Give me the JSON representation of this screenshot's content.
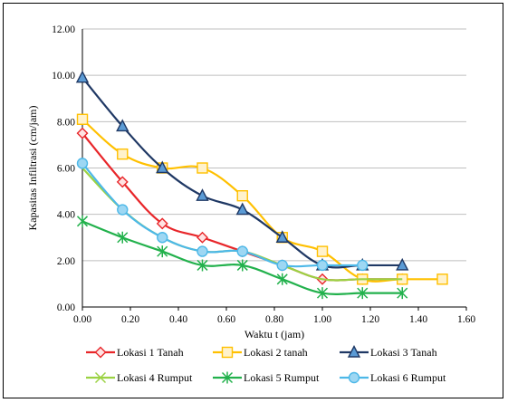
{
  "chart_data": {
    "type": "line",
    "title": "",
    "xlabel": "Waktu t (jam)",
    "ylabel": "Kapasitas Infiltrasi (cm/jam)",
    "xlim": [
      0,
      1.6
    ],
    "ylim": [
      0,
      12
    ],
    "x_ticks": [
      "0.00",
      "0.20",
      "0.40",
      "0.60",
      "0.80",
      "1.00",
      "1.20",
      "1.40",
      "1.60"
    ],
    "y_ticks": [
      "0.00",
      "2.00",
      "4.00",
      "6.00",
      "8.00",
      "10.00",
      "12.00"
    ],
    "grid": "horizontal",
    "legend_position": "bottom",
    "series": [
      {
        "name": "Lokasi 1 Tanah",
        "color": "#e8262a",
        "marker": "diamond",
        "x": [
          0,
          0.167,
          0.333,
          0.5,
          0.667,
          0.833,
          1.0,
          1.167,
          1.333
        ],
        "y": [
          7.5,
          5.4,
          3.6,
          3.0,
          2.4,
          1.8,
          1.2,
          1.2,
          1.2
        ]
      },
      {
        "name": "Lokasi 2 tanah",
        "color": "#ffc000",
        "marker": "square",
        "x": [
          0,
          0.167,
          0.333,
          0.5,
          0.667,
          0.833,
          1.0,
          1.167,
          1.333,
          1.5
        ],
        "y": [
          8.1,
          6.6,
          6.0,
          6.0,
          4.8,
          3.0,
          2.4,
          1.2,
          1.2,
          1.2
        ]
      },
      {
        "name": "Lokasi 3 Tanah",
        "color": "#1f3864",
        "marker": "triangle",
        "x": [
          0,
          0.167,
          0.333,
          0.5,
          0.667,
          0.833,
          1.0,
          1.167,
          1.333
        ],
        "y": [
          9.9,
          7.8,
          6.0,
          4.8,
          4.2,
          3.0,
          1.8,
          1.8,
          1.8
        ]
      },
      {
        "name": "Lokasi 4 Rumput",
        "color": "#9bd243",
        "marker": "x",
        "x": [
          0,
          0.167,
          0.333,
          0.5,
          0.667,
          0.833,
          1.0,
          1.167,
          1.333
        ],
        "y": [
          6.0,
          4.2,
          3.0,
          2.4,
          2.4,
          1.8,
          1.2,
          1.2,
          1.2
        ]
      },
      {
        "name": "Lokasi 5 Rumput",
        "color": "#22b14c",
        "marker": "star",
        "x": [
          0,
          0.167,
          0.333,
          0.5,
          0.667,
          0.833,
          1.0,
          1.167,
          1.333
        ],
        "y": [
          3.7,
          3.0,
          2.4,
          1.8,
          1.8,
          1.2,
          0.6,
          0.6,
          0.6
        ]
      },
      {
        "name": "Lokasi 6 Rumput",
        "color": "#4db8e8",
        "marker": "circle",
        "x": [
          0,
          0.167,
          0.333,
          0.5,
          0.667,
          0.833,
          1.0,
          1.167
        ],
        "y": [
          6.2,
          4.2,
          3.0,
          2.4,
          2.4,
          1.8,
          1.8,
          1.8
        ]
      }
    ]
  }
}
